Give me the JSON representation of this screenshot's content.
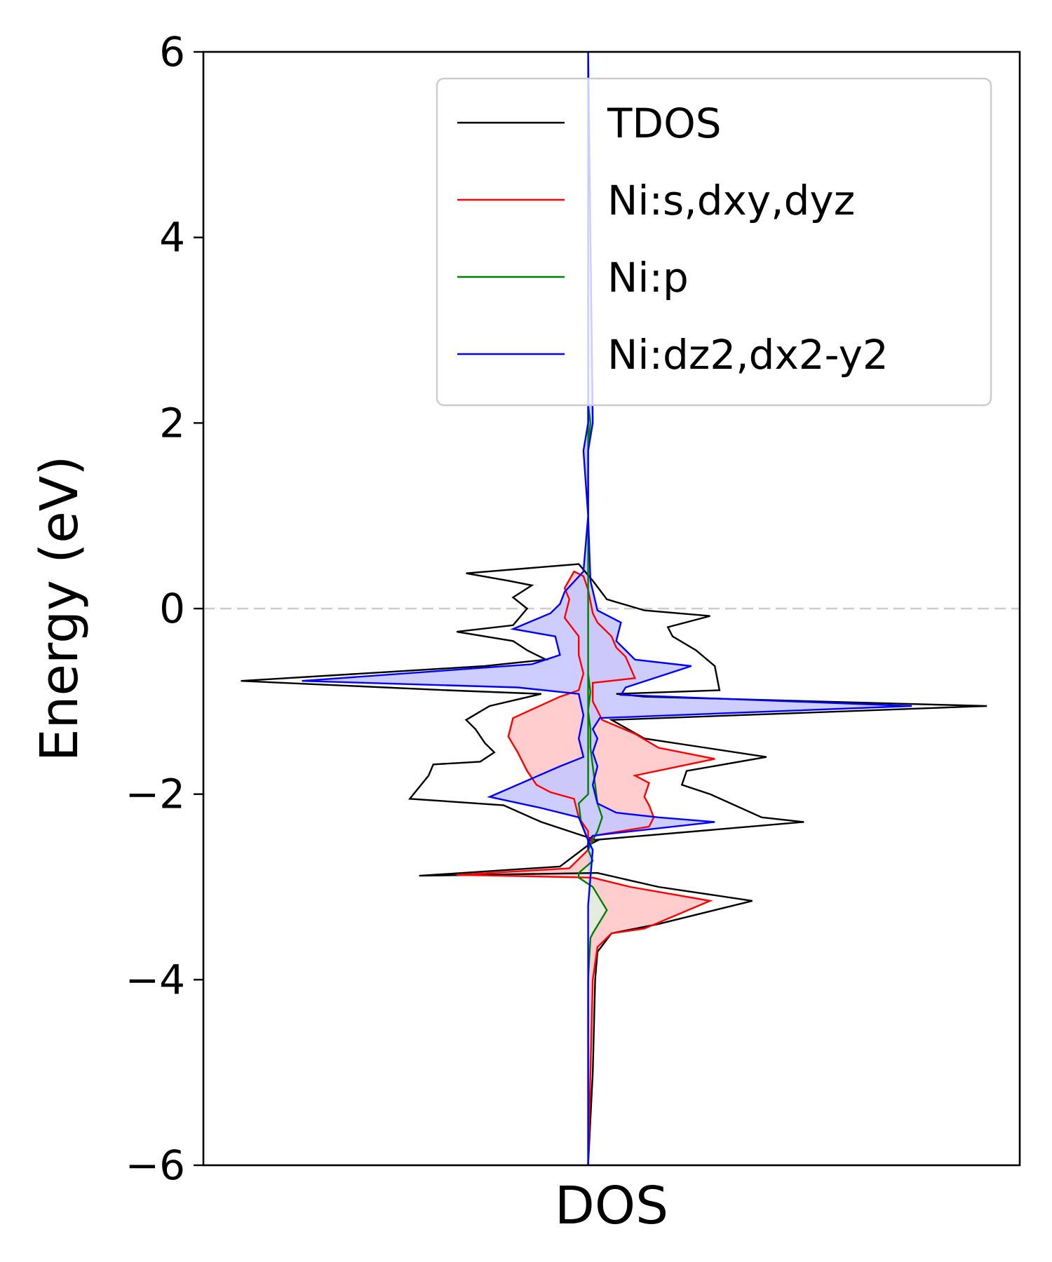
{
  "chart_data": {
    "type": "line",
    "orientation": "vertical-dos",
    "title": "",
    "xlabel": "DOS",
    "ylabel": "Energy (eV)",
    "ylim": [
      -6,
      6
    ],
    "xlim": [
      -8.2,
      9.2
    ],
    "y_ticks": [
      6,
      4,
      2,
      0,
      -2,
      -4,
      -6
    ],
    "y_tick_labels": [
      "6",
      "4",
      "2",
      "0",
      "−2",
      "−4",
      "−6"
    ],
    "fermi_level": 0,
    "grid": false,
    "legend": {
      "position": "top-right",
      "entries": [
        "TDOS",
        "Ni:s,dxy,dyz",
        "Ni:p",
        "Ni:dz2,dx2-y2"
      ]
    },
    "series": [
      {
        "name": "TDOS",
        "color": "#000000",
        "fill": false,
        "points": [
          [
            0,
            -6
          ],
          [
            0.1,
            -5
          ],
          [
            0.15,
            -4
          ],
          [
            0.2,
            -3.7
          ],
          [
            0.5,
            -3.5
          ],
          [
            1.5,
            -3.4
          ],
          [
            3.5,
            -3.15
          ],
          [
            1.5,
            -3.0
          ],
          [
            0.2,
            -2.85
          ],
          [
            -3.6,
            -2.88
          ],
          [
            -0.6,
            -2.78
          ],
          [
            0,
            -2.55
          ],
          [
            0,
            -2.5
          ],
          [
            4.6,
            -2.3
          ],
          [
            3.7,
            -2.25
          ],
          [
            2.6,
            -2.0
          ],
          [
            2.0,
            -1.9
          ],
          [
            2.1,
            -1.75
          ],
          [
            3.8,
            -1.6
          ],
          [
            2.5,
            -1.5
          ],
          [
            1.2,
            -1.4
          ],
          [
            0.5,
            -1.2
          ],
          [
            8.5,
            -1.05
          ],
          [
            1.2,
            -0.95
          ],
          [
            0.6,
            -0.92
          ],
          [
            2.8,
            -0.88
          ],
          [
            2.7,
            -0.62
          ],
          [
            2.3,
            -0.45
          ],
          [
            1.8,
            -0.3
          ],
          [
            1.7,
            -0.2
          ],
          [
            2.6,
            -0.08
          ],
          [
            1.2,
            -0.02
          ],
          [
            0.4,
            0.1
          ],
          [
            0.1,
            0.3
          ],
          [
            -0.2,
            0.48
          ],
          [
            -2.6,
            0.38
          ],
          [
            -1.7,
            0.3
          ],
          [
            -1.2,
            0.25
          ],
          [
            -1.6,
            0.12
          ],
          [
            -1.3,
            0.0
          ],
          [
            -1.6,
            -0.18
          ],
          [
            -2.8,
            -0.25
          ],
          [
            -1.6,
            -0.35
          ],
          [
            -1.3,
            -0.45
          ],
          [
            -0.9,
            -0.55
          ],
          [
            -2.2,
            -0.62
          ],
          [
            -7.4,
            -0.78
          ],
          [
            -3.0,
            -0.88
          ],
          [
            -1.0,
            -0.92
          ],
          [
            -2.1,
            -1.05
          ],
          [
            -2.6,
            -1.2
          ],
          [
            -2.4,
            -1.3
          ],
          [
            -2.2,
            -1.45
          ],
          [
            -2.0,
            -1.55
          ],
          [
            -2.3,
            -1.65
          ],
          [
            -3.3,
            -1.68
          ],
          [
            -3.4,
            -1.8
          ],
          [
            -3.8,
            -2.05
          ],
          [
            -1.8,
            -2.12
          ],
          [
            -1.0,
            -2.3
          ],
          [
            -0.4,
            -2.4
          ],
          [
            0.2,
            -2.5
          ],
          [
            0,
            -2.55
          ]
        ]
      },
      {
        "name": "Ni:s,dxy,dyz",
        "color": "#ff0000",
        "fill": true,
        "fill_color": "#ffc8c8",
        "points": [
          [
            0,
            -6
          ],
          [
            0.05,
            -5
          ],
          [
            0.1,
            -4
          ],
          [
            0.2,
            -3.65
          ],
          [
            0.5,
            -3.5
          ],
          [
            1.2,
            -3.45
          ],
          [
            2.6,
            -3.15
          ],
          [
            0.9,
            -3.0
          ],
          [
            0.1,
            -2.9
          ],
          [
            -2.8,
            -2.87
          ],
          [
            -0.4,
            -2.8
          ],
          [
            0,
            -2.6
          ],
          [
            0.1,
            -2.45
          ],
          [
            1.3,
            -2.35
          ],
          [
            1.4,
            -2.25
          ],
          [
            1.3,
            -2.12
          ],
          [
            1.2,
            -2.03
          ],
          [
            1.3,
            -1.88
          ],
          [
            1.0,
            -1.8
          ],
          [
            2.7,
            -1.62
          ],
          [
            1.5,
            -1.5
          ],
          [
            1.0,
            -1.35
          ],
          [
            0.3,
            -1.2
          ],
          [
            0.1,
            -1.0
          ],
          [
            0.1,
            -0.8
          ],
          [
            1.0,
            -0.75
          ],
          [
            0.8,
            -0.52
          ],
          [
            0.6,
            -0.42
          ],
          [
            0.5,
            -0.3
          ],
          [
            0.2,
            -0.15
          ],
          [
            0.1,
            -0.05
          ],
          [
            0,
            0.2
          ],
          [
            -0.1,
            0.35
          ],
          [
            -0.3,
            0.4
          ],
          [
            -0.5,
            0.22
          ],
          [
            -0.4,
            0.1
          ],
          [
            -0.5,
            -0.1
          ],
          [
            -0.2,
            -0.3
          ],
          [
            -0.2,
            -0.5
          ],
          [
            -0.1,
            -0.7
          ],
          [
            -0.2,
            -0.88
          ],
          [
            -0.6,
            -0.95
          ],
          [
            -1.6,
            -1.18
          ],
          [
            -1.7,
            -1.38
          ],
          [
            -1.5,
            -1.55
          ],
          [
            -1.3,
            -1.75
          ],
          [
            -1.1,
            -1.9
          ],
          [
            -0.8,
            -1.98
          ],
          [
            -0.3,
            -2.05
          ],
          [
            -0.2,
            -2.25
          ],
          [
            0,
            -2.4
          ],
          [
            0,
            -2.6
          ]
        ]
      },
      {
        "name": "Ni:p",
        "color": "#008000",
        "fill": true,
        "fill_color": "#e0f0e0",
        "points": [
          [
            0,
            -6
          ],
          [
            0,
            -4
          ],
          [
            0.05,
            -3.55
          ],
          [
            0.1,
            -3.5
          ],
          [
            0.4,
            -3.25
          ],
          [
            0.1,
            -3.0
          ],
          [
            -0.2,
            -2.9
          ],
          [
            -0.2,
            -2.85
          ],
          [
            0.1,
            -2.72
          ],
          [
            0,
            -2.6
          ],
          [
            0.2,
            -2.4
          ],
          [
            0.3,
            -2.25
          ],
          [
            0.2,
            -2.1
          ],
          [
            0.15,
            -1.9
          ],
          [
            0.1,
            -1.7
          ],
          [
            0.05,
            -1.5
          ],
          [
            0.05,
            -1.3
          ],
          [
            0,
            -1.1
          ],
          [
            0.05,
            -0.9
          ],
          [
            0,
            -0.7
          ],
          [
            0,
            -0.4
          ],
          [
            0,
            0
          ],
          [
            0,
            0.4
          ],
          [
            0,
            1
          ],
          [
            0,
            1.7
          ],
          [
            0.05,
            2.0
          ],
          [
            0,
            2.2
          ],
          [
            0,
            -2.0
          ],
          [
            -0.2,
            -2.1
          ],
          [
            -0.15,
            -2.3
          ],
          [
            0,
            -2.5
          ],
          [
            0,
            -2.6
          ]
        ]
      },
      {
        "name": "Ni:dz2,dx2-y2",
        "color": "#0000ff",
        "fill": true,
        "fill_color": "#c8c8ff",
        "points": [
          [
            0,
            -6
          ],
          [
            0,
            -4
          ],
          [
            0,
            -3.2
          ],
          [
            0.05,
            -2.9
          ],
          [
            0.1,
            -2.6
          ],
          [
            0,
            -2.5
          ],
          [
            0.1,
            -2.45
          ],
          [
            0.4,
            -2.43
          ],
          [
            2.7,
            -2.3
          ],
          [
            1.5,
            -2.25
          ],
          [
            0.6,
            -2.2
          ],
          [
            0.2,
            -2.1
          ],
          [
            0.1,
            -1.9
          ],
          [
            0.2,
            -1.7
          ],
          [
            0.1,
            -1.55
          ],
          [
            0.2,
            -1.4
          ],
          [
            0.1,
            -1.3
          ],
          [
            0.25,
            -1.18
          ],
          [
            6.9,
            -1.05
          ],
          [
            0.7,
            -0.93
          ],
          [
            0.8,
            -0.85
          ],
          [
            2.2,
            -0.62
          ],
          [
            1.0,
            -0.55
          ],
          [
            0.8,
            -0.45
          ],
          [
            0.6,
            -0.35
          ],
          [
            0.7,
            -0.15
          ],
          [
            0.2,
            -0.02
          ],
          [
            0.05,
            0.3
          ],
          [
            0,
            1
          ],
          [
            0,
            1.7
          ],
          [
            0.1,
            2
          ],
          [
            0,
            6
          ],
          [
            0,
            2
          ],
          [
            -0.1,
            1.7
          ],
          [
            0,
            1
          ],
          [
            -0.1,
            0.4
          ],
          [
            -0.5,
            0.18
          ],
          [
            -0.6,
            0.05
          ],
          [
            -0.8,
            -0.05
          ],
          [
            -1.6,
            -0.22
          ],
          [
            -0.7,
            -0.3
          ],
          [
            -0.6,
            -0.5
          ],
          [
            -1.2,
            -0.6
          ],
          [
            -6.1,
            -0.78
          ],
          [
            -1.5,
            -0.85
          ],
          [
            -0.2,
            -0.92
          ],
          [
            -0.1,
            -1.15
          ],
          [
            -0.2,
            -1.4
          ],
          [
            -0.1,
            -1.6
          ],
          [
            -0.6,
            -1.7
          ],
          [
            -2.1,
            -2.03
          ],
          [
            -1.0,
            -2.15
          ],
          [
            -0.2,
            -2.25
          ],
          [
            0,
            -2.5
          ],
          [
            0,
            -2.6
          ]
        ]
      }
    ]
  }
}
